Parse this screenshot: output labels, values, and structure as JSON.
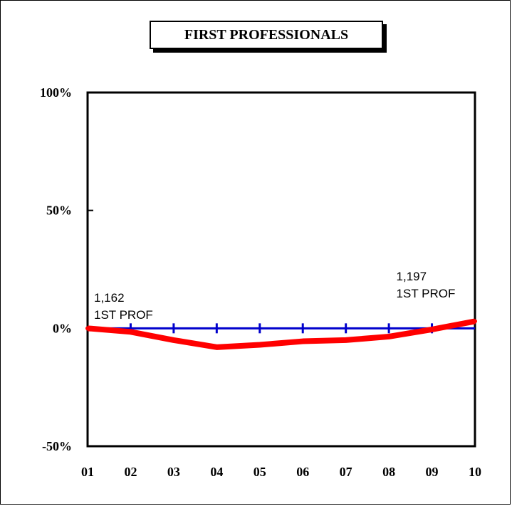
{
  "chart_data": {
    "type": "line",
    "title": "FIRST PROFESSIONALS",
    "xlabel": "",
    "ylabel": "",
    "categories": [
      "01",
      "02",
      "03",
      "04",
      "05",
      "06",
      "07",
      "08",
      "09",
      "10"
    ],
    "y_ticks": [
      "100%",
      "50%",
      "0%",
      "-50%"
    ],
    "y_tick_values": [
      100,
      50,
      0,
      -50
    ],
    "ylim": [
      -50,
      100
    ],
    "grid": false,
    "series": [
      {
        "color": "#ff0000",
        "values": [
          0,
          -1.5,
          -5,
          -8,
          -7,
          -5.5,
          -5,
          -3.5,
          -0.5,
          3
        ]
      }
    ],
    "baseline": {
      "value": 0,
      "color": "#0000cc"
    },
    "annotations": [
      {
        "category_index": 0,
        "lines": [
          "1,162",
          "1ST PROF"
        ]
      },
      {
        "category_index": 8,
        "lines": [
          "1,197",
          "1ST PROF"
        ]
      }
    ]
  }
}
